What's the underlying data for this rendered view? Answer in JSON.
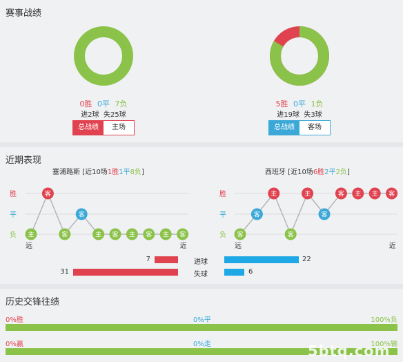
{
  "record": {
    "title": "赛事战绩",
    "left": {
      "win": "0胜",
      "draw": "0平",
      "loss": "7负",
      "goals": "进2球  失25球",
      "win_ratio": 0,
      "loss_ratio": 1,
      "tab_active": "总战绩",
      "tab_other": "主场",
      "accent": "#e0434f"
    },
    "right": {
      "win": "5胜",
      "draw": "0平",
      "loss": "1负",
      "goals": "进19球  失3球",
      "win_ratio": 0.8333,
      "loss_ratio": 0.1667,
      "tab_active": "总战绩",
      "tab_other": "客场",
      "accent": "#3ba8d8"
    }
  },
  "recent": {
    "title": "近期表现",
    "left_team": {
      "name": "塞浦路斯",
      "prefix": " [近10场",
      "w": "1胜",
      "d": "1平",
      "l": "8负",
      "suffix": "]"
    },
    "right_team": {
      "name": "西班牙",
      "prefix": " [近10场",
      "w": "6胜",
      "d": "2平",
      "l": "2负",
      "suffix": "]"
    },
    "axis": {
      "win": "胜",
      "draw": "平",
      "loss": "负",
      "far": "远",
      "near": "近"
    },
    "left_games": [
      {
        "r": "L",
        "v": "主"
      },
      {
        "r": "W",
        "v": "客"
      },
      {
        "r": "L",
        "v": "客"
      },
      {
        "r": "D",
        "v": "客"
      },
      {
        "r": "L",
        "v": "主"
      },
      {
        "r": "L",
        "v": "客"
      },
      {
        "r": "L",
        "v": "主"
      },
      {
        "r": "L",
        "v": "客"
      },
      {
        "r": "L",
        "v": "主"
      },
      {
        "r": "L",
        "v": "客"
      }
    ],
    "right_games": [
      {
        "r": "L",
        "v": "客"
      },
      {
        "r": "D",
        "v": "客"
      },
      {
        "r": "W",
        "v": "主"
      },
      {
        "r": "L",
        "v": "客"
      },
      {
        "r": "W",
        "v": "主"
      },
      {
        "r": "D",
        "v": "客"
      },
      {
        "r": "W",
        "v": "客"
      },
      {
        "r": "W",
        "v": "主"
      },
      {
        "r": "W",
        "v": "主"
      },
      {
        "r": "W",
        "v": "客"
      }
    ],
    "goals_for_label": "进球",
    "goals_against_label": "失球",
    "left_for": "7",
    "left_against": "31",
    "right_for": "22",
    "right_against": "6",
    "colors": {
      "win": "#e0434f",
      "draw": "#3ba8d8",
      "loss": "#8bc34a",
      "for_bar": "#e0434f",
      "right_bar": "#1ea8e6"
    }
  },
  "history": {
    "title": "历史交锋往绩",
    "row1": {
      "left": "0%胜",
      "mid": "0%平",
      "right": "100%负"
    },
    "row2": {
      "left": "0%赢",
      "mid": "0%走",
      "right": "100%输"
    }
  },
  "watermark": "5btq.com"
}
